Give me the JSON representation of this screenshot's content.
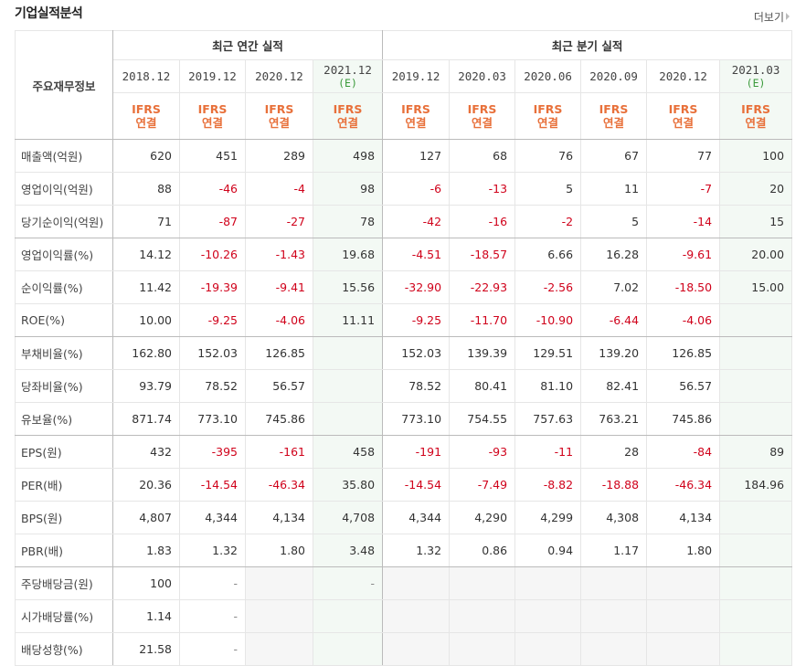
{
  "title": "기업실적분석",
  "more_label": "더보기",
  "header": {
    "row_header": "주요재무정보",
    "annual_group": "최근 연간 실적",
    "quarter_group": "최근 분기 실적",
    "periods": [
      {
        "label": "2018.12",
        "est": ""
      },
      {
        "label": "2019.12",
        "est": ""
      },
      {
        "label": "2020.12",
        "est": ""
      },
      {
        "label": "2021.12",
        "est": "(E)"
      },
      {
        "label": "2019.12",
        "est": ""
      },
      {
        "label": "2020.03",
        "est": ""
      },
      {
        "label": "2020.06",
        "est": ""
      },
      {
        "label": "2020.09",
        "est": ""
      },
      {
        "label": "2020.12",
        "est": ""
      },
      {
        "label": "2021.03",
        "est": "(E)"
      }
    ],
    "ifrs_line1": "IFRS",
    "ifrs_line2": "연결"
  },
  "colors": {
    "negative": "#d0021b",
    "ifrs": "#e8703a",
    "estimate": "#3a9a3a",
    "estimate_bg": "#f3f9f4"
  },
  "rows": [
    {
      "label": "매출액(억원)",
      "values": [
        "620",
        "451",
        "289",
        "498",
        "127",
        "68",
        "76",
        "67",
        "77",
        "100"
      ]
    },
    {
      "label": "영업이익(억원)",
      "values": [
        "88",
        "-46",
        "-4",
        "98",
        "-6",
        "-13",
        "5",
        "11",
        "-7",
        "20"
      ]
    },
    {
      "label": "당기순이익(억원)",
      "values": [
        "71",
        "-87",
        "-27",
        "78",
        "-42",
        "-16",
        "-2",
        "5",
        "-14",
        "15"
      ],
      "group_end": true
    },
    {
      "label": "영업이익률(%)",
      "values": [
        "14.12",
        "-10.26",
        "-1.43",
        "19.68",
        "-4.51",
        "-18.57",
        "6.66",
        "16.28",
        "-9.61",
        "20.00"
      ]
    },
    {
      "label": "순이익률(%)",
      "values": [
        "11.42",
        "-19.39",
        "-9.41",
        "15.56",
        "-32.90",
        "-22.93",
        "-2.56",
        "7.02",
        "-18.50",
        "15.00"
      ]
    },
    {
      "label": "ROE(%)",
      "values": [
        "10.00",
        "-9.25",
        "-4.06",
        "11.11",
        "-9.25",
        "-11.70",
        "-10.90",
        "-6.44",
        "-4.06",
        ""
      ],
      "group_end": true
    },
    {
      "label": "부채비율(%)",
      "values": [
        "162.80",
        "152.03",
        "126.85",
        "",
        "152.03",
        "139.39",
        "129.51",
        "139.20",
        "126.85",
        ""
      ]
    },
    {
      "label": "당좌비율(%)",
      "values": [
        "93.79",
        "78.52",
        "56.57",
        "",
        "78.52",
        "80.41",
        "81.10",
        "82.41",
        "56.57",
        ""
      ]
    },
    {
      "label": "유보율(%)",
      "values": [
        "871.74",
        "773.10",
        "745.86",
        "",
        "773.10",
        "754.55",
        "757.63",
        "763.21",
        "745.86",
        ""
      ],
      "group_end": true
    },
    {
      "label": "EPS(원)",
      "values": [
        "432",
        "-395",
        "-161",
        "458",
        "-191",
        "-93",
        "-11",
        "28",
        "-84",
        "89"
      ]
    },
    {
      "label": "PER(배)",
      "values": [
        "20.36",
        "-14.54",
        "-46.34",
        "35.80",
        "-14.54",
        "-7.49",
        "-8.82",
        "-18.88",
        "-46.34",
        "184.96"
      ]
    },
    {
      "label": "BPS(원)",
      "values": [
        "4,807",
        "4,344",
        "4,134",
        "4,708",
        "4,344",
        "4,290",
        "4,299",
        "4,308",
        "4,134",
        ""
      ]
    },
    {
      "label": "PBR(배)",
      "values": [
        "1.83",
        "1.32",
        "1.80",
        "3.48",
        "1.32",
        "0.86",
        "0.94",
        "1.17",
        "1.80",
        ""
      ],
      "group_end": true
    },
    {
      "label": "주당배당금(원)",
      "values": [
        "100",
        "-",
        null,
        "-",
        null,
        null,
        null,
        null,
        null,
        ""
      ]
    },
    {
      "label": "시가배당률(%)",
      "values": [
        "1.14",
        "-",
        null,
        "",
        null,
        null,
        null,
        null,
        null,
        ""
      ]
    },
    {
      "label": "배당성향(%)",
      "values": [
        "21.58",
        "-",
        null,
        "",
        null,
        null,
        null,
        null,
        null,
        ""
      ]
    }
  ]
}
